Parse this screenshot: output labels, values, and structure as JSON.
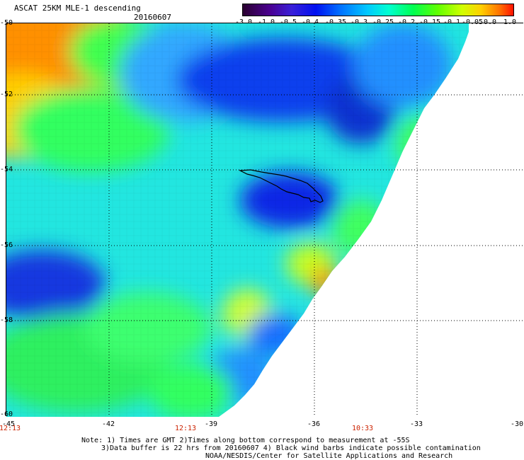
{
  "header": {
    "title": "ASCAT 25KM MLE-1 descending",
    "date": "20160607"
  },
  "scale": {
    "ticks": [
      "-3.0",
      "-1.0",
      "-0.5",
      "-0.4",
      "-0.35",
      "-0.3",
      "-0.25",
      "-0.2",
      "-0.15",
      "-0.1",
      "-0.05",
      "0.0",
      "1.0"
    ]
  },
  "axes": {
    "lat_labels": [
      "-50",
      "-52",
      "-54",
      "-56",
      "-58",
      "-60"
    ],
    "lon_labels": [
      "-45",
      "-42",
      "-39",
      "-36",
      "-33",
      "-30"
    ],
    "time_labels": [
      "12:13",
      "12:13",
      "10:33"
    ]
  },
  "notes": {
    "line1": "Note: 1) Times are GMT 2)Times along bottom correspond to measurement at -55S",
    "line2": "3)Data buffer is 22 hrs from 20160607 4) Black wind barbs indicate possible contamination",
    "line3": "NOAA/NESDIS/Center for Satellite Applications and Research"
  },
  "colors": {
    "swath_edge": "#ffffff",
    "coastline": "#000000",
    "time_label": "#cc2200"
  }
}
